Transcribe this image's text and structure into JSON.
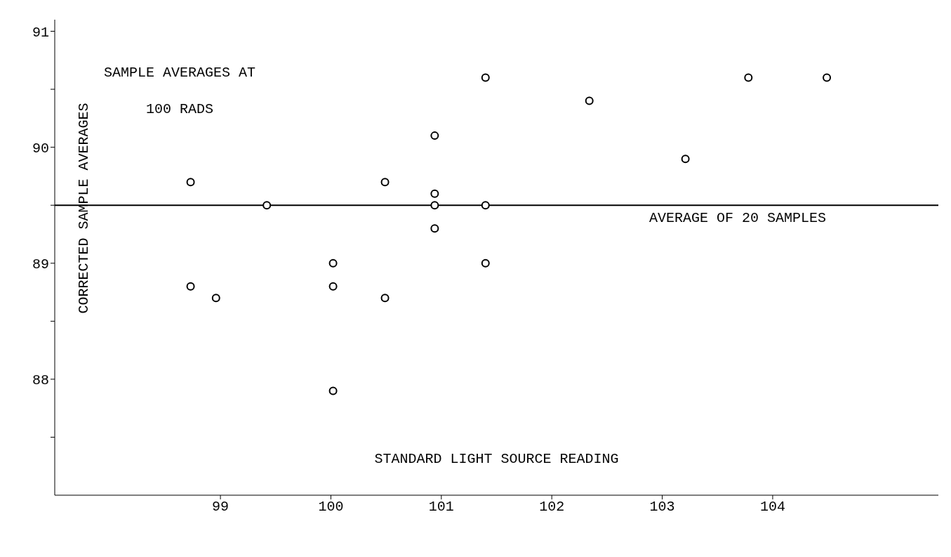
{
  "chart_data": {
    "type": "scatter",
    "title": "SAMPLE AVERAGES AT\n100 RADS",
    "xlabel": "STANDARD LIGHT SOURCE READING",
    "ylabel": "CORRECTED SAMPLE AVERAGES",
    "series": [
      {
        "color": "#000000",
        "x": [
          98.73,
          98.73,
          98.96,
          99.42,
          100.02,
          100.02,
          100.02,
          100.49,
          100.49,
          100.94,
          100.94,
          100.94,
          100.94,
          101.4,
          101.4,
          101.4,
          102.34,
          103.21,
          103.78,
          104.49
        ],
        "values": [
          89.7,
          88.8,
          88.7,
          89.5,
          89.0,
          88.8,
          87.9,
          89.7,
          88.7,
          90.1,
          89.6,
          89.5,
          89.3,
          90.6,
          89.5,
          89.0,
          90.4,
          89.9,
          90.6,
          90.6
        ]
      }
    ],
    "xlim": [
      97.5,
      105.5
    ],
    "ylim": [
      87,
      91.1
    ],
    "xticks": [
      99,
      100,
      101,
      102,
      103,
      104
    ],
    "yticks": [
      {
        "value": 87.5,
        "label": null
      },
      88,
      {
        "value": 88.5,
        "label": null
      },
      89,
      {
        "value": 89.5,
        "label": null
      },
      90,
      {
        "value": 90.5,
        "label": null
      },
      91
    ],
    "ref_lines": [
      {
        "axis": "y",
        "value": 89.5,
        "label": "AVERAGE OF 20 SAMPLES",
        "color": "#000000",
        "line_style": "solid"
      }
    ],
    "marker": "circle",
    "grid": false,
    "legend": false
  }
}
